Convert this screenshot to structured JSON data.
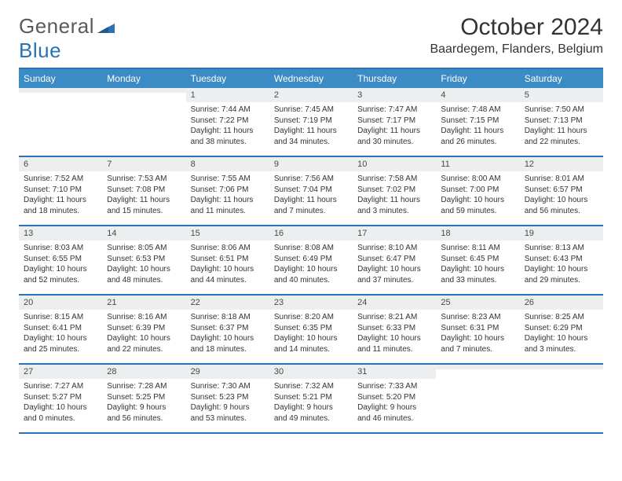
{
  "logo": {
    "word1": "General",
    "word2": "Blue"
  },
  "title": "October 2024",
  "location": "Baardegem, Flanders, Belgium",
  "colors": {
    "header_bar": "#3b8bc4",
    "border": "#2a72b5",
    "day_num_bg": "#eceeef",
    "text": "#333333",
    "logo_gray": "#5a5a5a",
    "logo_blue": "#2a72b5"
  },
  "days_of_week": [
    "Sunday",
    "Monday",
    "Tuesday",
    "Wednesday",
    "Thursday",
    "Friday",
    "Saturday"
  ],
  "weeks": [
    [
      {
        "n": "",
        "sr": "",
        "ss": "",
        "dl": ""
      },
      {
        "n": "",
        "sr": "",
        "ss": "",
        "dl": ""
      },
      {
        "n": "1",
        "sr": "Sunrise: 7:44 AM",
        "ss": "Sunset: 7:22 PM",
        "dl": "Daylight: 11 hours and 38 minutes."
      },
      {
        "n": "2",
        "sr": "Sunrise: 7:45 AM",
        "ss": "Sunset: 7:19 PM",
        "dl": "Daylight: 11 hours and 34 minutes."
      },
      {
        "n": "3",
        "sr": "Sunrise: 7:47 AM",
        "ss": "Sunset: 7:17 PM",
        "dl": "Daylight: 11 hours and 30 minutes."
      },
      {
        "n": "4",
        "sr": "Sunrise: 7:48 AM",
        "ss": "Sunset: 7:15 PM",
        "dl": "Daylight: 11 hours and 26 minutes."
      },
      {
        "n": "5",
        "sr": "Sunrise: 7:50 AM",
        "ss": "Sunset: 7:13 PM",
        "dl": "Daylight: 11 hours and 22 minutes."
      }
    ],
    [
      {
        "n": "6",
        "sr": "Sunrise: 7:52 AM",
        "ss": "Sunset: 7:10 PM",
        "dl": "Daylight: 11 hours and 18 minutes."
      },
      {
        "n": "7",
        "sr": "Sunrise: 7:53 AM",
        "ss": "Sunset: 7:08 PM",
        "dl": "Daylight: 11 hours and 15 minutes."
      },
      {
        "n": "8",
        "sr": "Sunrise: 7:55 AM",
        "ss": "Sunset: 7:06 PM",
        "dl": "Daylight: 11 hours and 11 minutes."
      },
      {
        "n": "9",
        "sr": "Sunrise: 7:56 AM",
        "ss": "Sunset: 7:04 PM",
        "dl": "Daylight: 11 hours and 7 minutes."
      },
      {
        "n": "10",
        "sr": "Sunrise: 7:58 AM",
        "ss": "Sunset: 7:02 PM",
        "dl": "Daylight: 11 hours and 3 minutes."
      },
      {
        "n": "11",
        "sr": "Sunrise: 8:00 AM",
        "ss": "Sunset: 7:00 PM",
        "dl": "Daylight: 10 hours and 59 minutes."
      },
      {
        "n": "12",
        "sr": "Sunrise: 8:01 AM",
        "ss": "Sunset: 6:57 PM",
        "dl": "Daylight: 10 hours and 56 minutes."
      }
    ],
    [
      {
        "n": "13",
        "sr": "Sunrise: 8:03 AM",
        "ss": "Sunset: 6:55 PM",
        "dl": "Daylight: 10 hours and 52 minutes."
      },
      {
        "n": "14",
        "sr": "Sunrise: 8:05 AM",
        "ss": "Sunset: 6:53 PM",
        "dl": "Daylight: 10 hours and 48 minutes."
      },
      {
        "n": "15",
        "sr": "Sunrise: 8:06 AM",
        "ss": "Sunset: 6:51 PM",
        "dl": "Daylight: 10 hours and 44 minutes."
      },
      {
        "n": "16",
        "sr": "Sunrise: 8:08 AM",
        "ss": "Sunset: 6:49 PM",
        "dl": "Daylight: 10 hours and 40 minutes."
      },
      {
        "n": "17",
        "sr": "Sunrise: 8:10 AM",
        "ss": "Sunset: 6:47 PM",
        "dl": "Daylight: 10 hours and 37 minutes."
      },
      {
        "n": "18",
        "sr": "Sunrise: 8:11 AM",
        "ss": "Sunset: 6:45 PM",
        "dl": "Daylight: 10 hours and 33 minutes."
      },
      {
        "n": "19",
        "sr": "Sunrise: 8:13 AM",
        "ss": "Sunset: 6:43 PM",
        "dl": "Daylight: 10 hours and 29 minutes."
      }
    ],
    [
      {
        "n": "20",
        "sr": "Sunrise: 8:15 AM",
        "ss": "Sunset: 6:41 PM",
        "dl": "Daylight: 10 hours and 25 minutes."
      },
      {
        "n": "21",
        "sr": "Sunrise: 8:16 AM",
        "ss": "Sunset: 6:39 PM",
        "dl": "Daylight: 10 hours and 22 minutes."
      },
      {
        "n": "22",
        "sr": "Sunrise: 8:18 AM",
        "ss": "Sunset: 6:37 PM",
        "dl": "Daylight: 10 hours and 18 minutes."
      },
      {
        "n": "23",
        "sr": "Sunrise: 8:20 AM",
        "ss": "Sunset: 6:35 PM",
        "dl": "Daylight: 10 hours and 14 minutes."
      },
      {
        "n": "24",
        "sr": "Sunrise: 8:21 AM",
        "ss": "Sunset: 6:33 PM",
        "dl": "Daylight: 10 hours and 11 minutes."
      },
      {
        "n": "25",
        "sr": "Sunrise: 8:23 AM",
        "ss": "Sunset: 6:31 PM",
        "dl": "Daylight: 10 hours and 7 minutes."
      },
      {
        "n": "26",
        "sr": "Sunrise: 8:25 AM",
        "ss": "Sunset: 6:29 PM",
        "dl": "Daylight: 10 hours and 3 minutes."
      }
    ],
    [
      {
        "n": "27",
        "sr": "Sunrise: 7:27 AM",
        "ss": "Sunset: 5:27 PM",
        "dl": "Daylight: 10 hours and 0 minutes."
      },
      {
        "n": "28",
        "sr": "Sunrise: 7:28 AM",
        "ss": "Sunset: 5:25 PM",
        "dl": "Daylight: 9 hours and 56 minutes."
      },
      {
        "n": "29",
        "sr": "Sunrise: 7:30 AM",
        "ss": "Sunset: 5:23 PM",
        "dl": "Daylight: 9 hours and 53 minutes."
      },
      {
        "n": "30",
        "sr": "Sunrise: 7:32 AM",
        "ss": "Sunset: 5:21 PM",
        "dl": "Daylight: 9 hours and 49 minutes."
      },
      {
        "n": "31",
        "sr": "Sunrise: 7:33 AM",
        "ss": "Sunset: 5:20 PM",
        "dl": "Daylight: 9 hours and 46 minutes."
      },
      {
        "n": "",
        "sr": "",
        "ss": "",
        "dl": ""
      },
      {
        "n": "",
        "sr": "",
        "ss": "",
        "dl": ""
      }
    ]
  ]
}
